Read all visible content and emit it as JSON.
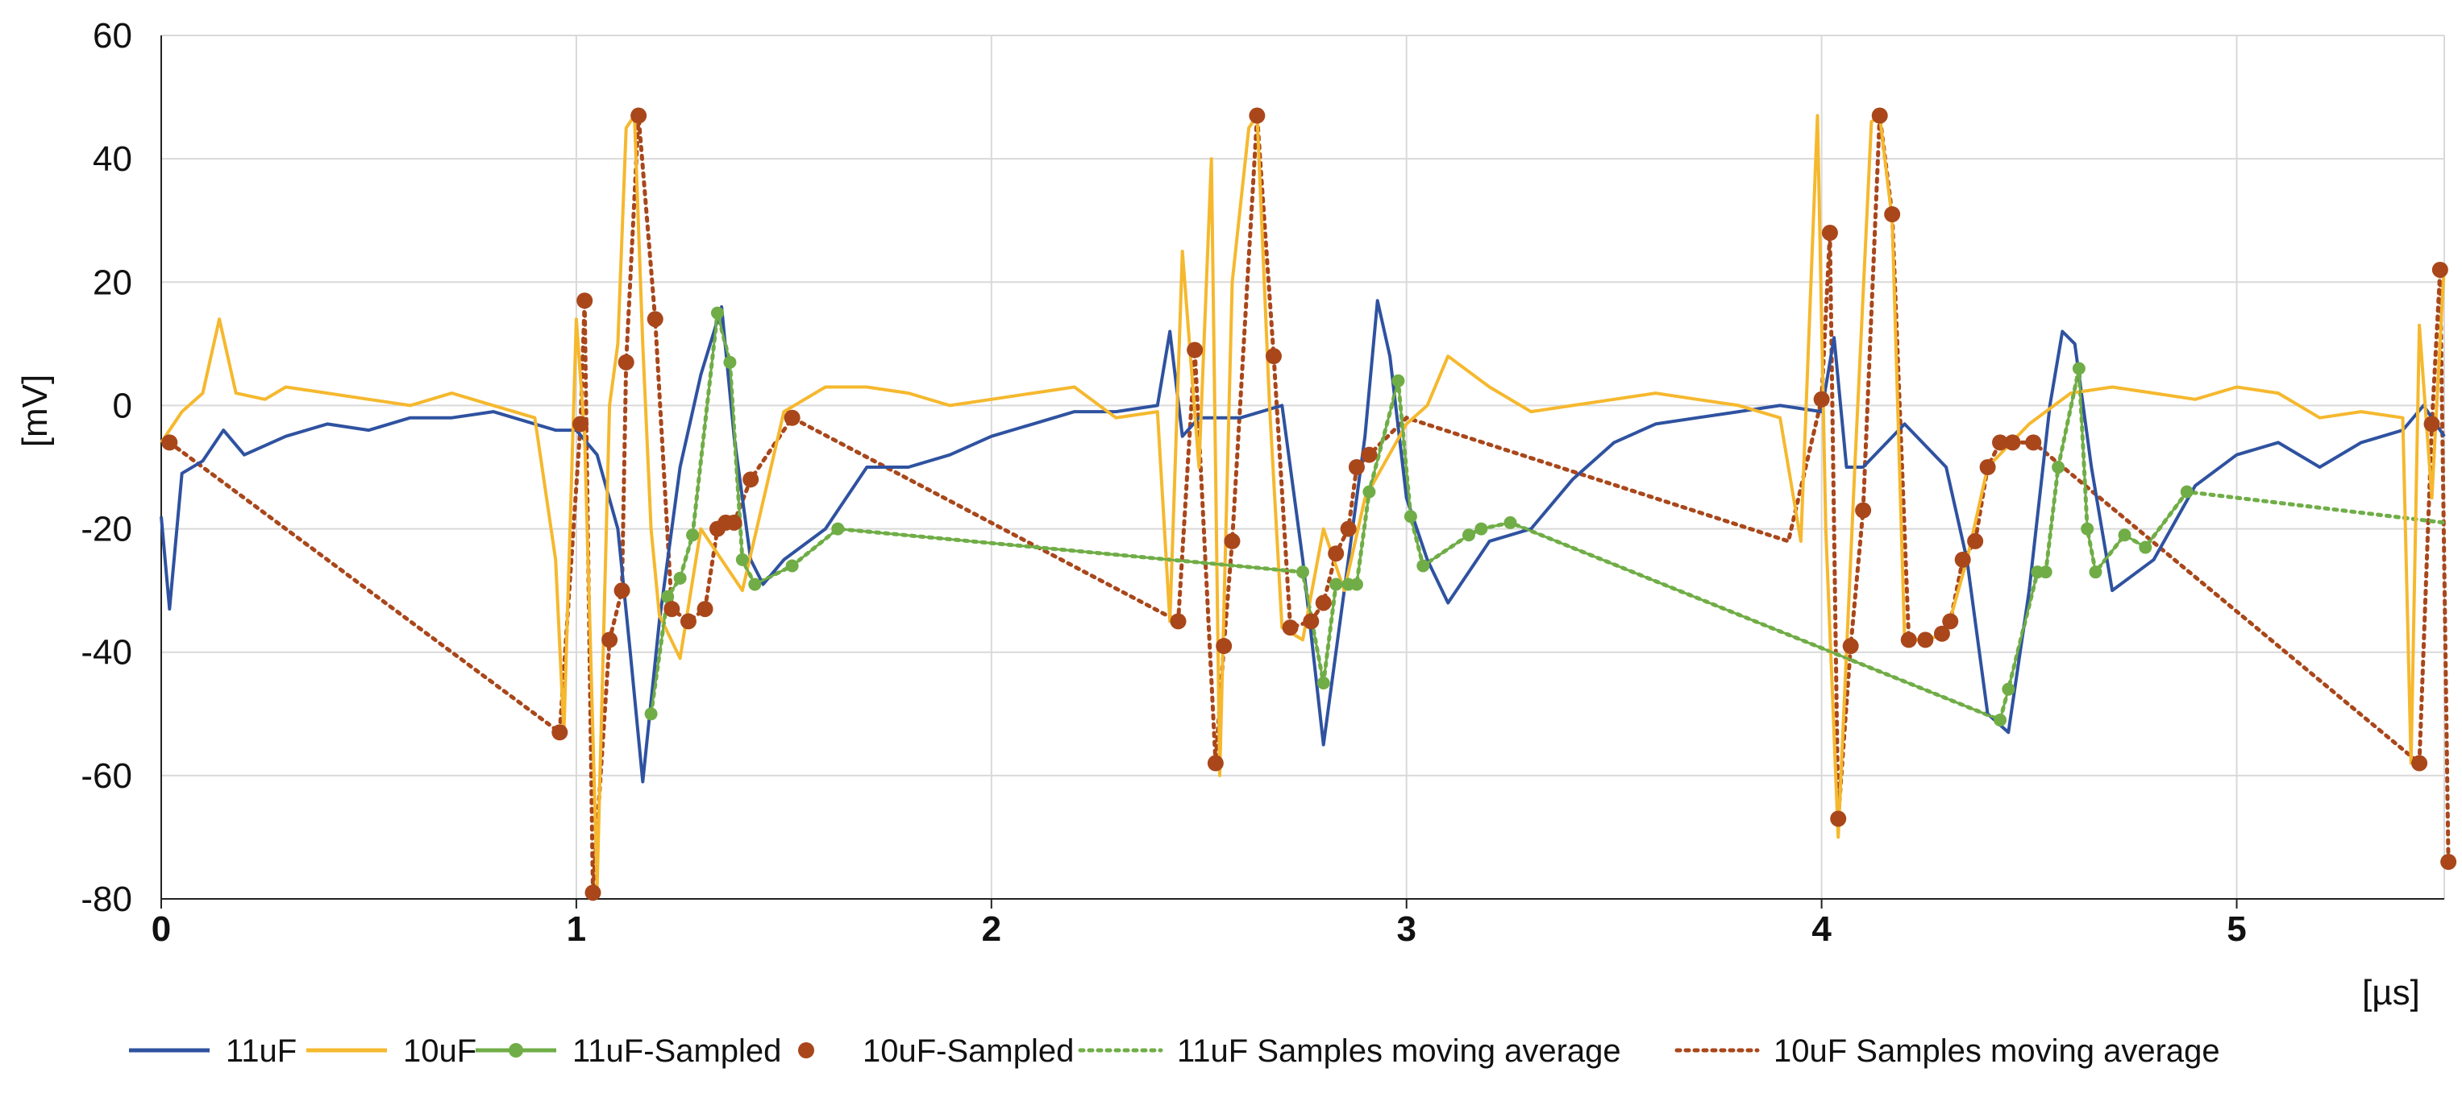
{
  "chart_data": {
    "type": "line",
    "title": "",
    "xlabel": "[µs]",
    "ylabel": "[mV]",
    "xlim": [
      0,
      5.5
    ],
    "ylim": [
      -80,
      60
    ],
    "xticks": [
      0,
      1,
      2,
      3,
      4,
      5
    ],
    "yticks": [
      -80,
      -60,
      -40,
      -20,
      0,
      20,
      40,
      60
    ],
    "xtick_labels": [
      "0",
      "1",
      "2",
      "3",
      "4",
      "5"
    ],
    "ytick_labels": [
      "-80",
      "-60",
      "-40",
      "-20",
      "0",
      "20",
      "40",
      "60"
    ],
    "grid": true,
    "legend_position": "bottom",
    "colors": {
      "blue": "#2F52A0",
      "orange": "#F5B82E",
      "green": "#70AD47",
      "brown": "#A9471B"
    },
    "series": [
      {
        "name": "11uF",
        "style": "line",
        "color": "#2F52A0",
        "x": [
          0,
          0.02,
          0.05,
          0.1,
          0.15,
          0.2,
          0.3,
          0.4,
          0.5,
          0.6,
          0.7,
          0.8,
          0.9,
          0.95,
          1.0,
          1.05,
          1.1,
          1.13,
          1.16,
          1.2,
          1.25,
          1.3,
          1.35,
          1.38,
          1.42,
          1.45,
          1.5,
          1.6,
          1.7,
          1.8,
          1.9,
          2.0,
          2.1,
          2.2,
          2.3,
          2.4,
          2.43,
          2.46,
          2.5,
          2.6,
          2.7,
          2.75,
          2.8,
          2.85,
          2.9,
          2.93,
          2.96,
          3.0,
          3.05,
          3.1,
          3.2,
          3.3,
          3.4,
          3.5,
          3.6,
          3.7,
          3.8,
          3.9,
          4.0,
          4.03,
          4.06,
          4.1,
          4.2,
          4.3,
          4.35,
          4.4,
          4.45,
          4.5,
          4.55,
          4.58,
          4.61,
          4.65,
          4.7,
          4.8,
          4.9,
          5.0,
          5.1,
          5.2,
          5.3,
          5.4,
          5.45,
          5.5
        ],
        "y": [
          -18,
          -33,
          -11,
          -9,
          -4,
          -8,
          -5,
          -3,
          -4,
          -2,
          -2,
          -1,
          -3,
          -4,
          -4,
          -8,
          -20,
          -40,
          -61,
          -35,
          -10,
          5,
          16,
          -5,
          -25,
          -29,
          -25,
          -20,
          -10,
          -10,
          -8,
          -5,
          -3,
          -1,
          -1,
          0,
          12,
          -5,
          -2,
          -2,
          0,
          -25,
          -55,
          -30,
          -5,
          17,
          8,
          -15,
          -25,
          -32,
          -22,
          -20,
          -12,
          -6,
          -3,
          -2,
          -1,
          0,
          -1,
          11,
          -10,
          -10,
          -3,
          -10,
          -25,
          -50,
          -53,
          -30,
          0,
          12,
          10,
          -10,
          -30,
          -25,
          -13,
          -8,
          -6,
          -10,
          -6,
          -4,
          0,
          -5
        ]
      },
      {
        "name": "10uF",
        "style": "line",
        "color": "#F5B82E",
        "x": [
          0,
          0.05,
          0.1,
          0.14,
          0.18,
          0.25,
          0.3,
          0.4,
          0.5,
          0.6,
          0.7,
          0.8,
          0.9,
          0.95,
          0.97,
          1.0,
          1.02,
          1.05,
          1.08,
          1.1,
          1.12,
          1.14,
          1.16,
          1.18,
          1.2,
          1.25,
          1.3,
          1.35,
          1.4,
          1.5,
          1.6,
          1.7,
          1.8,
          1.9,
          2.0,
          2.1,
          2.2,
          2.3,
          2.4,
          2.43,
          2.46,
          2.5,
          2.53,
          2.55,
          2.58,
          2.62,
          2.64,
          2.67,
          2.7,
          2.75,
          2.8,
          2.85,
          2.9,
          3.0,
          3.05,
          3.1,
          3.2,
          3.3,
          3.4,
          3.5,
          3.6,
          3.7,
          3.8,
          3.9,
          3.95,
          3.99,
          4.01,
          4.04,
          4.08,
          4.12,
          4.14,
          4.17,
          4.2,
          4.25,
          4.3,
          4.35,
          4.4,
          4.5,
          4.6,
          4.7,
          4.8,
          4.9,
          5.0,
          5.1,
          5.2,
          5.3,
          5.4,
          5.42,
          5.44,
          5.47,
          5.5
        ],
        "y": [
          -6,
          -1,
          2,
          14,
          2,
          1,
          3,
          2,
          1,
          0,
          2,
          0,
          -2,
          -25,
          -53,
          14,
          -5,
          -78,
          0,
          10,
          45,
          47,
          10,
          -20,
          -34,
          -41,
          -20,
          -25,
          -30,
          -1,
          3,
          3,
          2,
          0,
          1,
          2,
          3,
          -2,
          -1,
          -35,
          25,
          -10,
          40,
          -60,
          20,
          45,
          47,
          0,
          -36,
          -38,
          -20,
          -30,
          -15,
          -3,
          0,
          8,
          3,
          -1,
          0,
          1,
          2,
          1,
          0,
          -2,
          -22,
          47,
          -20,
          -70,
          -10,
          46,
          47,
          30,
          -38,
          -38,
          -37,
          -25,
          -10,
          -3,
          2,
          3,
          2,
          1,
          3,
          2,
          -2,
          -1,
          -2,
          -58,
          13,
          -15,
          23
        ]
      },
      {
        "name": "11uF-Sampled",
        "style": "line-markers",
        "color": "#70AD47",
        "x": [
          1.18,
          1.22,
          1.25,
          1.28,
          1.34,
          1.37,
          1.4,
          1.43,
          1.52,
          1.63,
          2.75,
          2.8,
          2.83,
          2.86,
          2.88,
          2.91,
          2.98,
          3.01,
          3.04,
          3.15,
          3.18,
          3.25,
          4.43,
          4.45,
          4.52,
          4.54,
          4.57,
          4.62,
          4.64,
          4.66,
          4.73,
          4.78,
          4.88
        ],
        "y": [
          -50,
          -31,
          -28,
          -21,
          15,
          7,
          -25,
          -29,
          -26,
          -20,
          -27,
          -45,
          -29,
          -29,
          -29,
          -14,
          4,
          -18,
          -26,
          -21,
          -20,
          -19,
          -51,
          -46,
          -27,
          -27,
          -10,
          6,
          -20,
          -27,
          -21,
          -23,
          -14
        ]
      },
      {
        "name": "10uF-Sampled",
        "style": "markers",
        "color": "#A9471B",
        "x": [
          0.02,
          0.96,
          1.01,
          1.02,
          1.04,
          1.08,
          1.11,
          1.12,
          1.15,
          1.19,
          1.23,
          1.27,
          1.31,
          1.34,
          1.36,
          1.38,
          1.42,
          1.52,
          2.45,
          2.49,
          2.54,
          2.56,
          2.58,
          2.64,
          2.68,
          2.72,
          2.77,
          2.8,
          2.83,
          2.86,
          2.88,
          2.91,
          4.0,
          4.02,
          4.04,
          4.07,
          4.1,
          4.14,
          4.17,
          4.21,
          4.25,
          4.29,
          4.31,
          4.34,
          4.37,
          4.4,
          4.43,
          4.46,
          4.51,
          5.44,
          5.47,
          5.49,
          5.51
        ],
        "y": [
          -6,
          -53,
          -3,
          17,
          -79,
          -38,
          -30,
          7,
          47,
          14,
          -33,
          -35,
          -33,
          -20,
          -19,
          -19,
          -12,
          -2,
          -35,
          9,
          -58,
          -39,
          -22,
          47,
          8,
          -36,
          -35,
          -32,
          -24,
          -20,
          -10,
          -8,
          1,
          28,
          -67,
          -39,
          -17,
          47,
          31,
          -38,
          -38,
          -37,
          -35,
          -25,
          -22,
          -10,
          -6,
          -6,
          -6,
          -58,
          -3,
          22,
          -74
        ]
      },
      {
        "name": "11uF Samples moving average",
        "style": "dotted",
        "color": "#70AD47",
        "x": [
          1.18,
          1.22,
          1.25,
          1.28,
          1.34,
          1.37,
          1.4,
          1.43,
          1.52,
          1.63,
          2.75,
          2.8,
          2.83,
          2.86,
          2.88,
          2.91,
          2.98,
          3.01,
          3.04,
          3.15,
          3.18,
          3.25,
          4.43,
          4.45,
          4.52,
          4.54,
          4.57,
          4.62,
          4.64,
          4.66,
          4.73,
          4.78,
          4.88,
          5.5
        ],
        "y": [
          -50,
          -31,
          -28,
          -21,
          15,
          7,
          -25,
          -29,
          -26,
          -20,
          -27,
          -45,
          -29,
          -29,
          -29,
          -14,
          4,
          -18,
          -26,
          -21,
          -20,
          -19,
          -51,
          -46,
          -27,
          -27,
          -10,
          6,
          -20,
          -27,
          -21,
          -23,
          -14,
          -19
        ]
      },
      {
        "name": "10uF Samples moving average",
        "style": "dotted",
        "color": "#A9471B",
        "x": [
          0.02,
          0.96,
          1.01,
          1.02,
          1.04,
          1.08,
          1.11,
          1.12,
          1.15,
          1.19,
          1.23,
          1.27,
          1.31,
          1.34,
          1.36,
          1.38,
          1.42,
          1.52,
          2.45,
          2.49,
          2.54,
          2.56,
          2.58,
          2.64,
          2.68,
          2.72,
          2.77,
          2.8,
          2.83,
          2.86,
          2.88,
          2.91,
          3.0,
          3.92,
          4.0,
          4.02,
          4.04,
          4.07,
          4.1,
          4.14,
          4.17,
          4.21,
          4.25,
          4.29,
          4.31,
          4.34,
          4.37,
          4.4,
          4.43,
          4.46,
          4.51,
          5.44,
          5.47,
          5.49,
          5.51
        ],
        "y": [
          -6,
          -53,
          -3,
          17,
          -79,
          -38,
          -30,
          7,
          47,
          14,
          -33,
          -35,
          -33,
          -20,
          -19,
          -19,
          -12,
          -2,
          -35,
          9,
          -58,
          -39,
          -22,
          47,
          8,
          -36,
          -35,
          -32,
          -24,
          -20,
          -10,
          -8,
          -2,
          -22,
          1,
          28,
          -67,
          -39,
          -17,
          47,
          31,
          -38,
          -38,
          -37,
          -35,
          -25,
          -22,
          -10,
          -6,
          -6,
          -6,
          -58,
          -3,
          22,
          -74
        ]
      }
    ]
  }
}
